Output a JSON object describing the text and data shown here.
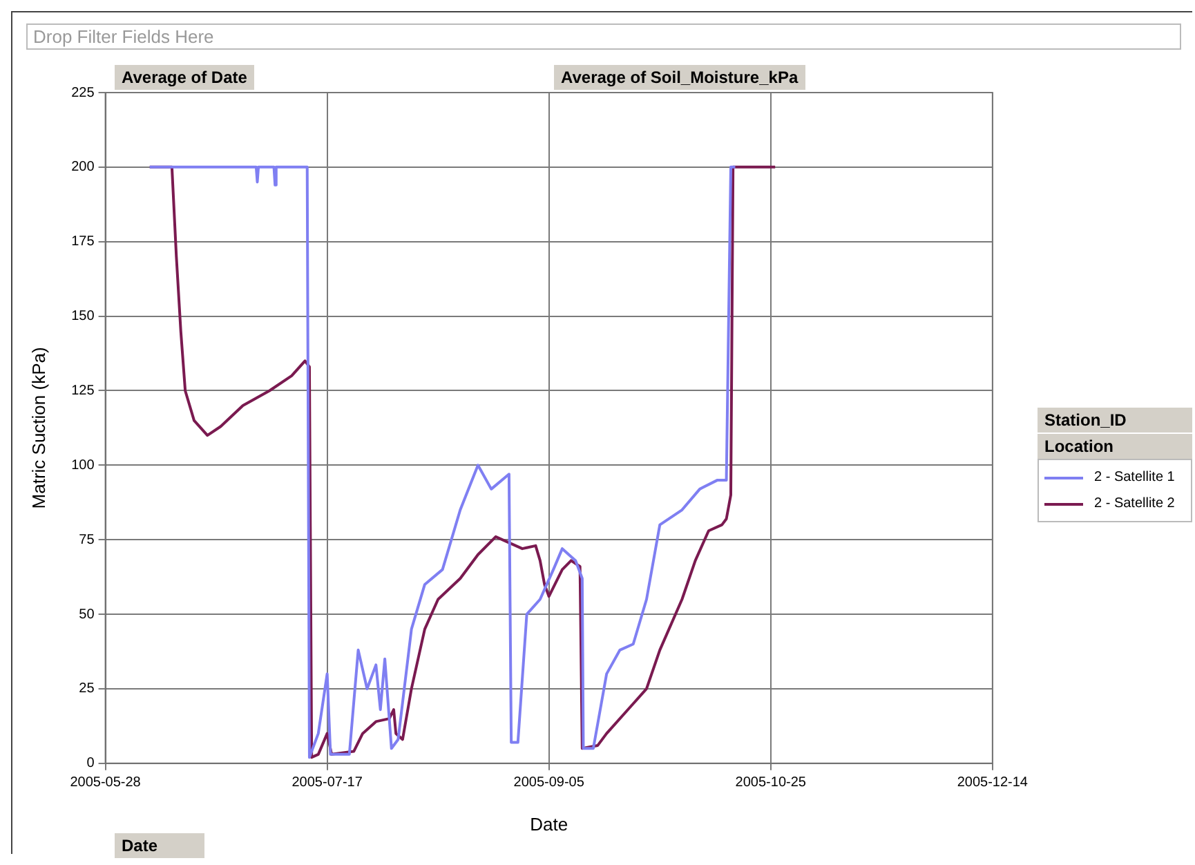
{
  "chart_data": {
    "type": "line",
    "xlabel": "Date",
    "ylabel": "Matric Suction (kPa)",
    "legend_title": "Location",
    "legend": "right",
    "grid": true,
    "xlim": [
      "2005-05-28",
      "2005-12-14"
    ],
    "xticks": [
      "2005-05-28",
      "2005-07-17",
      "2005-09-05",
      "2005-10-25",
      "2005-12-14"
    ],
    "ylim": [
      0,
      225
    ],
    "yticks": [
      0,
      25,
      50,
      75,
      100,
      125,
      150,
      175,
      200,
      225
    ],
    "annotations": [
      "Drop Filter Fields Here",
      "Average of Date",
      "Average of Soil_Moisture_kPa",
      "Station_ID",
      "Date"
    ],
    "series": [
      {
        "name": "2 - Satellite 1",
        "color": "#7f7ff2",
        "x": [
          "2005-06-07",
          "2005-07-01",
          "2005-07-01T06:00",
          "2005-07-01T12:00",
          "2005-07-05",
          "2005-07-05T06:00",
          "2005-07-05T12:00",
          "2005-07-12T12:00",
          "2005-07-13",
          "2005-07-15",
          "2005-07-17",
          "2005-07-17T18:00",
          "2005-07-22",
          "2005-07-24",
          "2005-07-26",
          "2005-07-28",
          "2005-07-29",
          "2005-07-30",
          "2005-07-31T12:00",
          "2005-08-02",
          "2005-08-05",
          "2005-08-08",
          "2005-08-12",
          "2005-08-16",
          "2005-08-20",
          "2005-08-23",
          "2005-08-27",
          "2005-08-27T12:00",
          "2005-08-29",
          "2005-08-31",
          "2005-09-03",
          "2005-09-06",
          "2005-09-08",
          "2005-09-11",
          "2005-09-12T12:00",
          "2005-09-12T18:00",
          "2005-09-15",
          "2005-09-18",
          "2005-09-21",
          "2005-09-24",
          "2005-09-27",
          "2005-09-30",
          "2005-10-05",
          "2005-10-09",
          "2005-10-13",
          "2005-10-15",
          "2005-10-16",
          "2005-10-17"
        ],
        "values": [
          200,
          200,
          195,
          200,
          200,
          194,
          200,
          200,
          2,
          10,
          30,
          3,
          3,
          38,
          25,
          33,
          18,
          35,
          5,
          8,
          45,
          60,
          65,
          85,
          100,
          92,
          97,
          7,
          7,
          50,
          55,
          65,
          72,
          68,
          62,
          5,
          5,
          30,
          38,
          40,
          55,
          80,
          85,
          92,
          95,
          95,
          200,
          200
        ]
      },
      {
        "name": "2 - Satellite 2",
        "color": "#7a1a50",
        "x": [
          "2005-06-07",
          "2005-06-12",
          "2005-06-13",
          "2005-06-14",
          "2005-06-15",
          "2005-06-17",
          "2005-06-20",
          "2005-06-23",
          "2005-06-28",
          "2005-07-04",
          "2005-07-09",
          "2005-07-12",
          "2005-07-13",
          "2005-07-13T12:00",
          "2005-07-15",
          "2005-07-17",
          "2005-07-18",
          "2005-07-23",
          "2005-07-25",
          "2005-07-28",
          "2005-07-31",
          "2005-08-01",
          "2005-08-01T12:00",
          "2005-08-03",
          "2005-08-05",
          "2005-08-08",
          "2005-08-11",
          "2005-08-16",
          "2005-08-20",
          "2005-08-24",
          "2005-08-30",
          "2005-09-02",
          "2005-09-03",
          "2005-09-04",
          "2005-09-05",
          "2005-09-08",
          "2005-09-10",
          "2005-09-12",
          "2005-09-12T12:00",
          "2005-09-16",
          "2005-09-18",
          "2005-09-24",
          "2005-09-27",
          "2005-09-30",
          "2005-10-05",
          "2005-10-08",
          "2005-10-11",
          "2005-10-14",
          "2005-10-15",
          "2005-10-16",
          "2005-10-16T12:00",
          "2005-10-26"
        ],
        "values": [
          200,
          200,
          170,
          145,
          125,
          115,
          110,
          113,
          120,
          125,
          130,
          135,
          133,
          2,
          3,
          10,
          3,
          4,
          10,
          14,
          15,
          18,
          10,
          8,
          25,
          45,
          55,
          62,
          70,
          76,
          72,
          73,
          68,
          60,
          56,
          65,
          68,
          66,
          5,
          6,
          10,
          20,
          25,
          38,
          55,
          68,
          78,
          80,
          82,
          90,
          200,
          200
        ]
      }
    ]
  }
}
